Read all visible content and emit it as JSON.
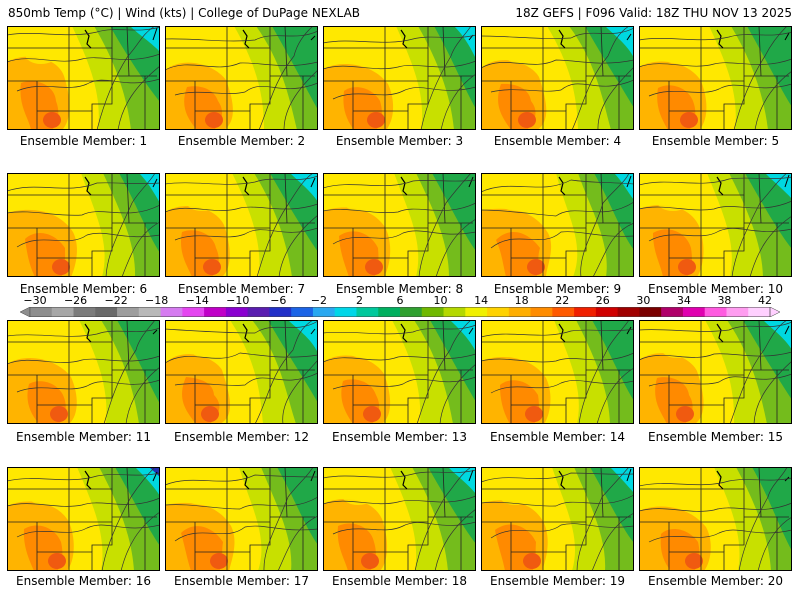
{
  "header": {
    "left": "850mb Temp (°C) | Wind (kts) | College of DuPage NEXLAB",
    "right": "18Z GEFS | F096 Valid: 18Z THU NOV 13 2025"
  },
  "members": [
    {
      "label": "Ensemble Member: 1"
    },
    {
      "label": "Ensemble Member: 2"
    },
    {
      "label": "Ensemble Member: 3"
    },
    {
      "label": "Ensemble Member: 4"
    },
    {
      "label": "Ensemble Member: 5"
    },
    {
      "label": "Ensemble Member: 6"
    },
    {
      "label": "Ensemble Member: 7"
    },
    {
      "label": "Ensemble Member: 8"
    },
    {
      "label": "Ensemble Member: 9"
    },
    {
      "label": "Ensemble Member: 10"
    },
    {
      "label": "Ensemble Member: 11"
    },
    {
      "label": "Ensemble Member: 12"
    },
    {
      "label": "Ensemble Member: 13"
    },
    {
      "label": "Ensemble Member: 14"
    },
    {
      "label": "Ensemble Member: 15"
    },
    {
      "label": "Ensemble Member: 16"
    },
    {
      "label": "Ensemble Member: 17"
    },
    {
      "label": "Ensemble Member: 18"
    },
    {
      "label": "Ensemble Member: 19"
    },
    {
      "label": "Ensemble Member: 20"
    }
  ],
  "color_scale": {
    "labels": [
      "−30",
      "−26",
      "−22",
      "−18",
      "−14",
      "−10",
      "−6",
      "−2",
      "2",
      "6",
      "10",
      "14",
      "18",
      "22",
      "26",
      "30",
      "34",
      "38",
      "42"
    ],
    "colors": [
      "#8e8e8e",
      "#a7a7a7",
      "#7c7c7c",
      "#6a6a6a",
      "#9d9d9d",
      "#b8b8b8",
      "#d57bf0",
      "#e445f0",
      "#c000c8",
      "#8a00d0",
      "#5a1eb0",
      "#2230c8",
      "#1c64e6",
      "#2aa8f0",
      "#00d6e8",
      "#00c89c",
      "#00b060",
      "#30a030",
      "#70b800",
      "#b4d800",
      "#f0f000",
      "#ffd200",
      "#ffae00",
      "#ff8c00",
      "#ff5a00",
      "#f02000",
      "#d00000",
      "#a00000",
      "#7a0000",
      "#b0006a",
      "#e000b0",
      "#ff5ae0",
      "#ff9cf0",
      "#ffd0ff"
    ]
  },
  "map_colors": {
    "cold": "#00d8e0",
    "cool": "#20a848",
    "mild": "#74bc1c",
    "warm_mild": "#c8e000",
    "warm": "#ffe800",
    "hot": "#ffb400",
    "very_hot": "#ff8a00",
    "hottest": "#f05a10",
    "deep_cold": "#2030b0"
  }
}
